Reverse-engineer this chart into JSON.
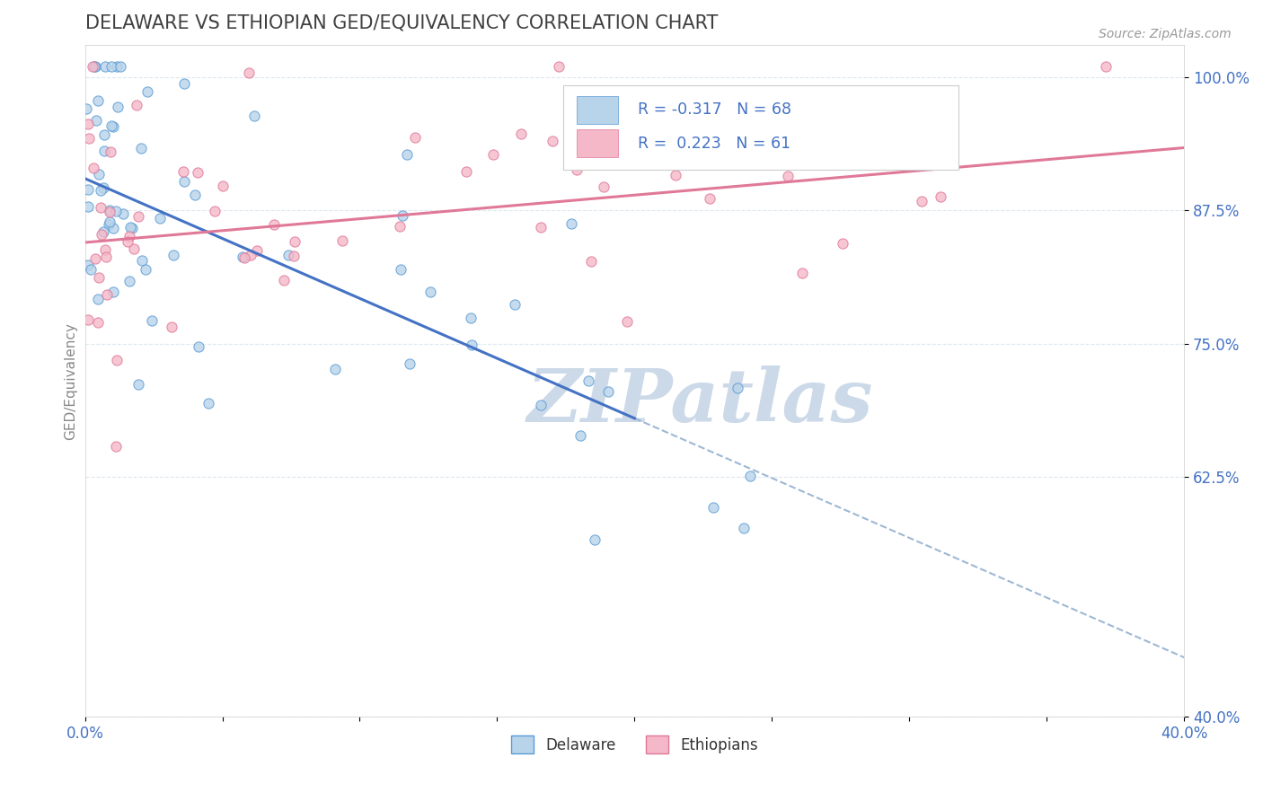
{
  "title": "DELAWARE VS ETHIOPIAN GED/EQUIVALENCY CORRELATION CHART",
  "source": "Source: ZipAtlas.com",
  "ylabel": "GED/Equivalency",
  "yticks": [
    40.0,
    62.5,
    75.0,
    87.5,
    100.0
  ],
  "ytick_labels": [
    "40.0%",
    "62.5%",
    "75.0%",
    "87.5%",
    "100.0%"
  ],
  "xmin": 0.0,
  "xmax": 40.0,
  "ymin": 40.0,
  "ymax": 103.0,
  "R_delaware": -0.317,
  "N_delaware": 68,
  "R_ethiopian": 0.223,
  "N_ethiopian": 61,
  "color_delaware_fill": "#b8d4ea",
  "color_delaware_edge": "#5b9bd5",
  "color_ethiopian_fill": "#f4b8c8",
  "color_ethiopian_edge": "#e07898",
  "color_line_delaware": "#4472c4",
  "color_line_ethiopian": "#e07898",
  "color_dashed": "#9eb8d4",
  "title_color": "#404040",
  "axis_tick_color": "#4472c4",
  "watermark_color": "#ccd9e8",
  "legend_r_color": "#4472c4",
  "background_color": "#ffffff",
  "grid_color": "#dde8f0",
  "del_line_x0": 0.0,
  "del_line_y0": 90.5,
  "del_line_x1": 20.0,
  "del_line_y1": 68.0,
  "del_dash_x0": 20.0,
  "del_dash_y0": 68.0,
  "del_dash_x1": 40.5,
  "del_dash_y1": 45.0,
  "eth_line_x0": 0.0,
  "eth_line_y0": 84.5,
  "eth_line_x1": 40.5,
  "eth_line_y1": 93.5,
  "watermark_text": "ZIPatlas"
}
